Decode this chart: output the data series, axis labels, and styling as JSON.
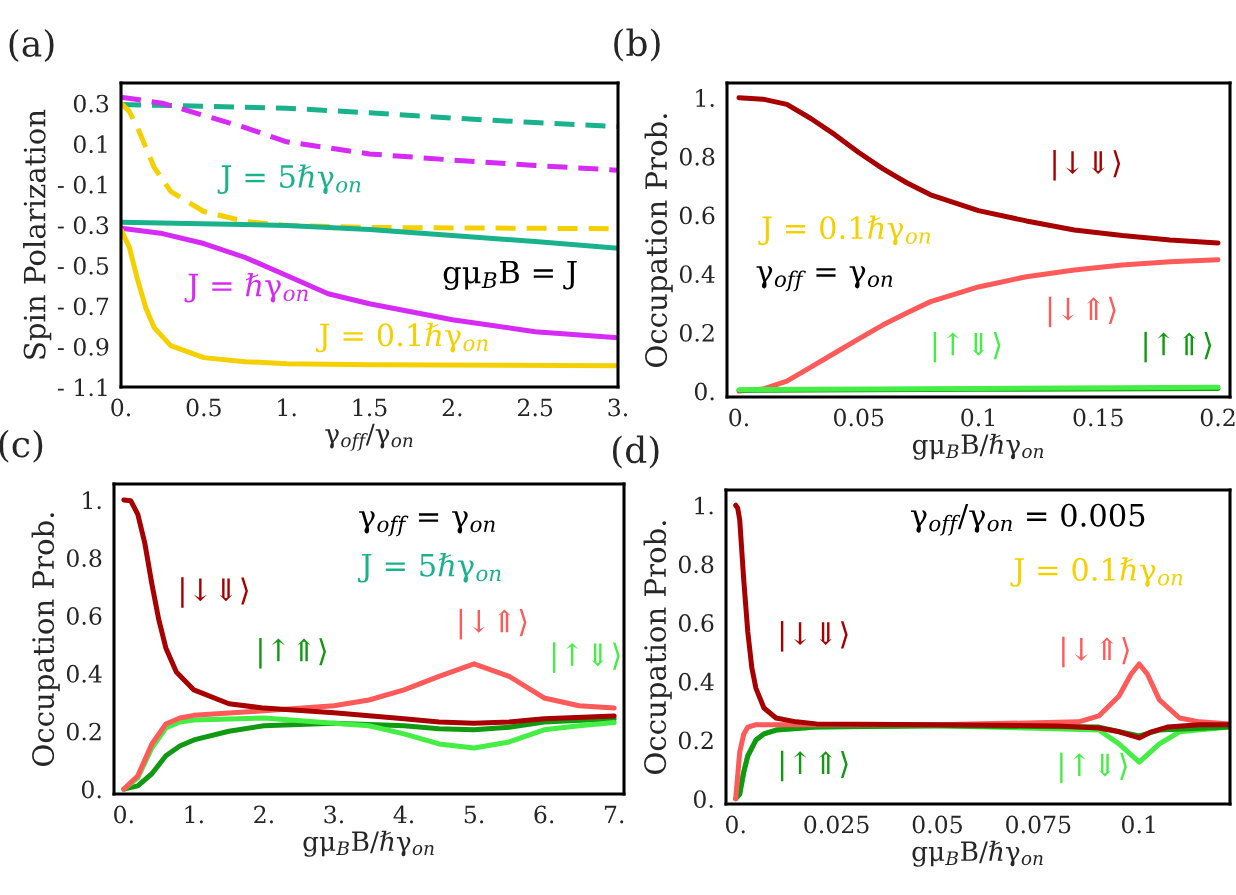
{
  "chart_data": [
    {
      "type": "line",
      "title": "(a)",
      "xlabel": "γ$_{off}$/γ$_{on}$",
      "ylabel": "Spin Polarization",
      "xlim": [
        0,
        3
      ],
      "ylim": [
        -1.1,
        0.4
      ],
      "xticks": [
        {
          "value": 0,
          "label": "0."
        },
        0.5,
        {
          "value": 1,
          "label": "1."
        },
        1.5,
        {
          "value": 2,
          "label": "2."
        },
        2.5,
        {
          "value": 3,
          "label": "3."
        }
      ],
      "yticks": [
        0.3,
        0.1,
        {
          "value": -0.1,
          "label": "- 0.1"
        },
        {
          "value": -0.3,
          "label": "- 0.3"
        },
        {
          "value": -0.5,
          "label": "- 0.5"
        },
        {
          "value": -0.7,
          "label": "- 0.7"
        },
        {
          "value": -0.9,
          "label": "- 0.9"
        },
        {
          "value": -1.1,
          "label": "- 1.1"
        }
      ],
      "grid": false,
      "series": [
        {
          "color": "#1ab28c",
          "line_style": "dashed",
          "x": [
            0,
            1,
            1.5,
            2,
            2.5,
            3
          ],
          "values": [
            0.294,
            0.276,
            0.253,
            0.227,
            0.205,
            0.185
          ]
        },
        {
          "color": "#d62af5",
          "line_style": "dashed",
          "x": [
            0,
            0.25,
            0.5,
            0.75,
            1,
            1.5,
            2,
            2.5,
            3
          ],
          "values": [
            0.33,
            0.3,
            0.24,
            0.18,
            0.11,
            0.05,
            0.02,
            -0.007,
            -0.03
          ]
        },
        {
          "color": "#f5d000",
          "line_style": "dashed",
          "x": [
            0,
            0.05,
            0.1,
            0.2,
            0.3,
            0.5,
            0.75,
            1,
            1.5,
            3
          ],
          "values": [
            0.3,
            0.26,
            0.18,
            -0.016,
            -0.135,
            -0.234,
            -0.283,
            -0.303,
            -0.313,
            -0.319
          ]
        },
        {
          "name": "J = 5ℏγ$_{on}$",
          "color": "#1ab28c",
          "line_style": "solid",
          "x": [
            0,
            1,
            1.5,
            2,
            2.5,
            3
          ],
          "values": [
            -0.287,
            -0.303,
            -0.323,
            -0.353,
            -0.382,
            -0.416
          ]
        },
        {
          "name": "J = ℏγ$_{on}$",
          "color": "#d62af5",
          "line_style": "solid",
          "x": [
            0,
            0.25,
            0.5,
            0.75,
            1,
            1.25,
            1.5,
            2,
            2.5,
            3
          ],
          "values": [
            -0.317,
            -0.343,
            -0.392,
            -0.461,
            -0.55,
            -0.64,
            -0.689,
            -0.768,
            -0.827,
            -0.857
          ]
        },
        {
          "name": "J = 0.1ℏγ$_{on}$",
          "color": "#f5d000",
          "line_style": "solid",
          "x": [
            0,
            0.05,
            0.1,
            0.15,
            0.2,
            0.3,
            0.5,
            0.75,
            1,
            1.5,
            3
          ],
          "values": [
            -0.323,
            -0.41,
            -0.57,
            -0.71,
            -0.807,
            -0.896,
            -0.955,
            -0.975,
            -0.985,
            -0.99,
            -0.995
          ]
        }
      ],
      "annotations": [
        "gμ$_{B}$B = J"
      ]
    },
    {
      "type": "line",
      "title": "(b)",
      "xlabel": "gμ$_{B}$B/ℏγ$_{on}$",
      "ylabel": "Occupation Prob.",
      "xlim": [
        -0.005,
        0.205
      ],
      "ylim": [
        -0.02,
        1.05
      ],
      "xticks": [
        {
          "value": 0,
          "label": "0."
        },
        0.05,
        0.1,
        0.15,
        0.2
      ],
      "yticks": [
        {
          "value": 0,
          "label": "0."
        },
        0.2,
        0.4,
        0.6,
        0.8,
        {
          "value": 1,
          "label": "1."
        }
      ],
      "grid": false,
      "series": [
        {
          "name": "|↓⇓⟩",
          "color": "#a80000",
          "line_style": "solid",
          "x": [
            0,
            0.01,
            0.02,
            0.03,
            0.04,
            0.05,
            0.06,
            0.07,
            0.08,
            0.1,
            0.12,
            0.14,
            0.16,
            0.18,
            0.2
          ],
          "values": [
            1.0,
            0.995,
            0.977,
            0.929,
            0.874,
            0.813,
            0.758,
            0.71,
            0.669,
            0.615,
            0.58,
            0.549,
            0.53,
            0.515,
            0.505
          ]
        },
        {
          "name": "|↓⇑⟩",
          "color": "#ff5a5a",
          "line_style": "solid",
          "x": [
            0,
            0.01,
            0.02,
            0.03,
            0.04,
            0.05,
            0.06,
            0.07,
            0.08,
            0.1,
            0.12,
            0.14,
            0.16,
            0.18,
            0.2
          ],
          "values": [
            0.0,
            0.007,
            0.034,
            0.082,
            0.13,
            0.178,
            0.225,
            0.266,
            0.305,
            0.355,
            0.39,
            0.413,
            0.43,
            0.441,
            0.448
          ]
        },
        {
          "name": "|↑⇑⟩",
          "color": "#119911",
          "line_style": "solid",
          "x": [
            0,
            0.1,
            0.2
          ],
          "values": [
            0.003,
            0.006,
            0.009
          ]
        },
        {
          "name": "|↑⇓⟩",
          "color": "#44ee44",
          "line_style": "solid",
          "x": [
            0,
            0.1,
            0.2
          ],
          "values": [
            0.005,
            0.009,
            0.013
          ]
        }
      ],
      "annotations": [
        "J = 0.1ℏγ$_{on}$",
        "γ$_{off}$ = γ$_{on}$"
      ]
    },
    {
      "type": "line",
      "title": "(c)",
      "xlabel": "gμ$_{B}$B/ℏγ$_{on}$",
      "ylabel": "Occupation Prob.",
      "xlim": [
        -0.14,
        7.14
      ],
      "ylim": [
        -0.017,
        1.055
      ],
      "xticks": [
        {
          "value": 0,
          "label": "0."
        },
        {
          "value": 1,
          "label": "1."
        },
        {
          "value": 2,
          "label": "2."
        },
        {
          "value": 3,
          "label": "3."
        },
        {
          "value": 4,
          "label": "4."
        },
        {
          "value": 5,
          "label": "5."
        },
        {
          "value": 6,
          "label": "6."
        },
        {
          "value": 7,
          "label": "7."
        }
      ],
      "yticks": [
        {
          "value": 0,
          "label": "0."
        },
        0.2,
        0.4,
        0.6,
        0.8,
        {
          "value": 1,
          "label": "1."
        }
      ],
      "grid": false,
      "series": [
        {
          "name": "|↑⇑⟩",
          "color": "#119911",
          "line_style": "solid",
          "x": [
            0,
            0.2,
            0.4,
            0.6,
            0.8,
            1,
            1.5,
            2,
            3,
            4,
            4.5,
            5,
            5.5,
            6,
            7
          ],
          "values": [
            0,
            0.011,
            0.053,
            0.115,
            0.149,
            0.17,
            0.2,
            0.219,
            0.228,
            0.219,
            0.209,
            0.205,
            0.214,
            0.232,
            0.243
          ]
        },
        {
          "name": "|↑⇓⟩",
          "color": "#44ee44",
          "line_style": "solid",
          "x": [
            0,
            0.2,
            0.4,
            0.6,
            0.8,
            1,
            2,
            3,
            3.5,
            4,
            4.5,
            5,
            5.5,
            6,
            6.5,
            7
          ],
          "values": [
            0,
            0.039,
            0.142,
            0.211,
            0.232,
            0.239,
            0.246,
            0.228,
            0.219,
            0.191,
            0.156,
            0.142,
            0.163,
            0.205,
            0.219,
            0.23
          ]
        },
        {
          "name": "|↓⇑⟩",
          "color": "#ff5a5a",
          "line_style": "solid",
          "x": [
            0,
            0.2,
            0.4,
            0.6,
            0.8,
            1,
            2,
            3,
            3.5,
            4,
            4.5,
            5,
            5.5,
            6,
            6.5,
            7
          ],
          "values": [
            0,
            0.046,
            0.156,
            0.225,
            0.246,
            0.255,
            0.271,
            0.288,
            0.308,
            0.343,
            0.39,
            0.433,
            0.39,
            0.315,
            0.288,
            0.28
          ]
        },
        {
          "name": "|↓⇓⟩",
          "color": "#a80000",
          "line_style": "solid",
          "x": [
            0,
            0.1,
            0.2,
            0.3,
            0.4,
            0.5,
            0.6,
            0.75,
            1,
            1.5,
            2,
            3,
            4,
            4.5,
            5,
            5.5,
            6,
            7
          ],
          "values": [
            1.0,
            0.997,
            0.95,
            0.85,
            0.71,
            0.585,
            0.488,
            0.405,
            0.343,
            0.295,
            0.28,
            0.264,
            0.243,
            0.232,
            0.228,
            0.232,
            0.243,
            0.253
          ]
        }
      ],
      "annotations": [
        "γ$_{off}$ = γ$_{on}$",
        "J = 5ℏγ$_{on}$"
      ]
    },
    {
      "type": "line",
      "title": "(d)",
      "xlabel": "gμ$_{B}$B/ℏγ$_{on}$",
      "ylabel": "Occupation Prob.",
      "xlim": [
        -0.0024,
        0.1225
      ],
      "ylim": [
        -0.018,
        1.052
      ],
      "xticks": [
        {
          "value": 0,
          "label": "0."
        },
        0.025,
        0.05,
        0.075,
        0.1
      ],
      "yticks": [
        {
          "value": 0,
          "label": "0."
        },
        0.2,
        0.4,
        0.6,
        0.8,
        {
          "value": 1,
          "label": "1."
        }
      ],
      "grid": false,
      "series": [
        {
          "name": "|↑⇓⟩",
          "color": "#44ee44",
          "line_style": "solid",
          "x": [
            0,
            0.001,
            0.002,
            0.003,
            0.005,
            0.007,
            0.01,
            0.02,
            0.05,
            0.09,
            0.095,
            0.1,
            0.105,
            0.11,
            0.1225
          ],
          "values": [
            0,
            0.016,
            0.091,
            0.146,
            0.2,
            0.221,
            0.234,
            0.244,
            0.249,
            0.234,
            0.187,
            0.125,
            0.187,
            0.228,
            0.244
          ]
        },
        {
          "name": "|↑⇑⟩",
          "color": "#119911",
          "line_style": "solid",
          "x": [
            0,
            0.001,
            0.002,
            0.003,
            0.005,
            0.007,
            0.01,
            0.02,
            0.05,
            0.09,
            0.1,
            0.105,
            0.1225
          ],
          "values": [
            0,
            0.016,
            0.091,
            0.146,
            0.2,
            0.221,
            0.234,
            0.244,
            0.249,
            0.244,
            0.214,
            0.234,
            0.244
          ]
        },
        {
          "name": "|↓⇑⟩",
          "color": "#ff5a5a",
          "line_style": "solid",
          "x": [
            0,
            0.001,
            0.002,
            0.003,
            0.005,
            0.05,
            0.085,
            0.09,
            0.095,
            0.098,
            0.1,
            0.102,
            0.105,
            0.11,
            0.115,
            0.1225
          ],
          "values": [
            0,
            0.159,
            0.22,
            0.244,
            0.252,
            0.252,
            0.262,
            0.282,
            0.35,
            0.425,
            0.459,
            0.425,
            0.337,
            0.275,
            0.262,
            0.255
          ]
        },
        {
          "name": "|↓⇓⟩",
          "color": "#a80000",
          "line_style": "solid",
          "x": [
            0,
            0.0005,
            0.001,
            0.002,
            0.003,
            0.004,
            0.005,
            0.007,
            0.01,
            0.015,
            0.02,
            0.05,
            0.08,
            0.09,
            0.095,
            0.1,
            0.103,
            0.107,
            0.115,
            0.1225
          ],
          "values": [
            1.0,
            0.99,
            0.95,
            0.745,
            0.568,
            0.446,
            0.377,
            0.309,
            0.275,
            0.262,
            0.255,
            0.252,
            0.248,
            0.241,
            0.228,
            0.207,
            0.228,
            0.244,
            0.252,
            0.252
          ]
        }
      ],
      "annotations": [
        "γ$_{off}$/γ$_{on}$ = 0.005",
        "J = 0.1ℏγ$_{on}$"
      ]
    }
  ]
}
